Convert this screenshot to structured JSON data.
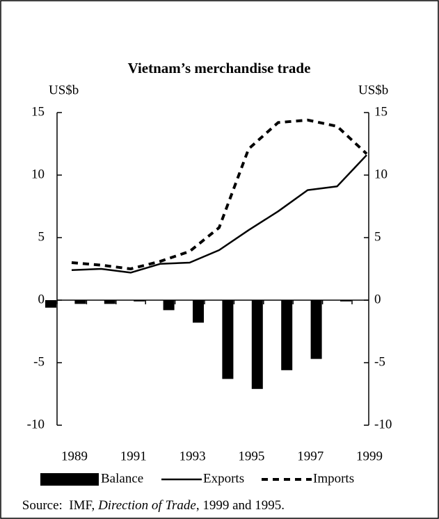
{
  "chart_data": {
    "type": "combo",
    "title": "Vietnam’s merchandise trade",
    "y_label": "US$b",
    "y2_label": "US$b",
    "categories": [
      "1989",
      null,
      "1991",
      null,
      "1993",
      null,
      "1995",
      null,
      "1997",
      null,
      "1999"
    ],
    "series": [
      {
        "name": "Balance",
        "type": "bar",
        "color": "#000000",
        "values": [
          -0.6,
          -0.3,
          -0.3,
          -0.1,
          -0.8,
          -1.8,
          -6.3,
          -7.1,
          -5.6,
          -4.7,
          -0.1
        ]
      },
      {
        "name": "Exports",
        "type": "line",
        "color": "#000000",
        "dashed": false,
        "values": [
          2.4,
          2.5,
          2.2,
          2.9,
          3.0,
          4.0,
          5.6,
          7.1,
          8.8,
          9.1,
          11.6
        ]
      },
      {
        "name": "Imports",
        "type": "line",
        "color": "#000000",
        "dashed": true,
        "values": [
          3.0,
          2.8,
          2.5,
          3.1,
          3.9,
          5.8,
          12.1,
          14.2,
          14.4,
          13.9,
          11.7
        ]
      }
    ],
    "ylim": [
      -10,
      15
    ],
    "yticks": [
      -10,
      -5,
      0,
      5,
      10,
      15
    ],
    "y2lim": [
      -10,
      15
    ],
    "y2ticks": [
      -10,
      -5,
      0,
      5,
      10,
      15
    ],
    "legend": "bottom",
    "source": [
      "Source:  IMF, ",
      "Direction of Trade",
      ", 1999 and 1995."
    ]
  }
}
